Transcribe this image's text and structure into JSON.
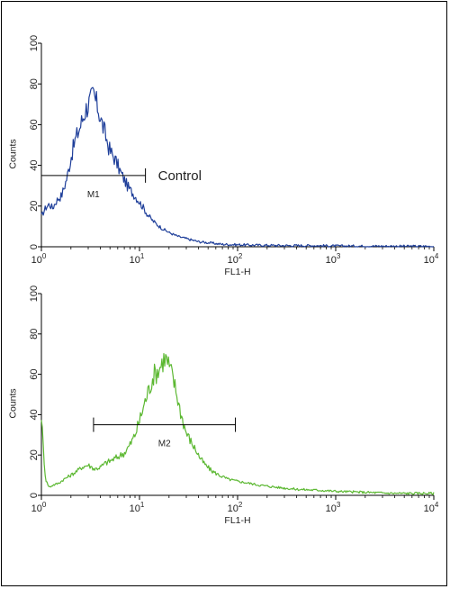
{
  "chart_data": [
    {
      "type": "line",
      "panel": "top",
      "xlabel": "FL1-H",
      "ylabel": "Counts",
      "x_scale": "log",
      "xlim": [
        1,
        10000
      ],
      "ylim": [
        0,
        100
      ],
      "y_ticks": [
        "0",
        "20",
        "40",
        "60",
        "80",
        "100"
      ],
      "x_ticks": [
        {
          "base": "10",
          "exp": "0"
        },
        {
          "base": "10",
          "exp": "1"
        },
        {
          "base": "10",
          "exp": "2"
        },
        {
          "base": "10",
          "exp": "3"
        },
        {
          "base": "10",
          "exp": "4"
        }
      ],
      "color": "#1f3f9a",
      "marker": {
        "label": "M1",
        "from": 1.0,
        "to": 11.5,
        "y": 35
      },
      "annotation": "Control",
      "series": [
        {
          "x": [
            1.0,
            1.1,
            1.2,
            1.3,
            1.4,
            1.5,
            1.6,
            1.7,
            1.8,
            1.9,
            2.0,
            2.2,
            2.4,
            2.6,
            2.8,
            3.0,
            3.2,
            3.4,
            3.6,
            3.8,
            4.0,
            4.3,
            4.6,
            5.0,
            5.5,
            6.0,
            6.5,
            7.0,
            7.5,
            8.0,
            9.0,
            10.0,
            11.0,
            12.0,
            13.5,
            15.0,
            17.0,
            20.0,
            25.0,
            30.0,
            40.0,
            50.0,
            70.0,
            100.0,
            150.0,
            300.0,
            600.0,
            1000.0,
            3000.0,
            10000.0
          ],
          "y": [
            15,
            19,
            21,
            19,
            22,
            24,
            25,
            29,
            33,
            38,
            44,
            52,
            57,
            62,
            67,
            70,
            72,
            75,
            71,
            68,
            63,
            58,
            53,
            47,
            44,
            40,
            36,
            33,
            30,
            28,
            25,
            22,
            19,
            16,
            13,
            11,
            9,
            7,
            5,
            4,
            2.5,
            2,
            1.2,
            1,
            0.8,
            0.6,
            0.6,
            0.4,
            0.3,
            0.2
          ]
        }
      ]
    },
    {
      "type": "line",
      "panel": "bottom",
      "xlabel": "FL1-H",
      "ylabel": "Counts",
      "x_scale": "log",
      "xlim": [
        1,
        10000
      ],
      "ylim": [
        0,
        100
      ],
      "y_ticks": [
        "0",
        "20",
        "40",
        "60",
        "80",
        "100"
      ],
      "x_ticks": [
        {
          "base": "10",
          "exp": "0"
        },
        {
          "base": "10",
          "exp": "1"
        },
        {
          "base": "10",
          "exp": "2"
        },
        {
          "base": "10",
          "exp": "3"
        },
        {
          "base": "10",
          "exp": "4"
        }
      ],
      "color": "#5cb832",
      "marker": {
        "label": "M2",
        "from": 3.4,
        "to": 95,
        "y": 35
      },
      "series": [
        {
          "x": [
            1.0,
            1.05,
            1.1,
            1.2,
            1.3,
            1.5,
            1.7,
            2.0,
            2.3,
            2.6,
            3.0,
            3.5,
            4.0,
            4.5,
            5.0,
            6.0,
            7.0,
            8.0,
            9.0,
            10.0,
            11.0,
            12.0,
            13.0,
            14.0,
            15.0,
            16.0,
            17.0,
            18.0,
            19.0,
            20.0,
            22.0,
            24.0,
            26.0,
            28.0,
            30.0,
            34.0,
            38.0,
            42.0,
            47.0,
            55.0,
            65.0,
            80.0,
            100.0,
            130.0,
            170.0,
            250.0,
            400.0,
            700.0,
            1000.0,
            2000.0,
            4000.0,
            10000.0
          ],
          "y": [
            40,
            22,
            8,
            4,
            5,
            6,
            8,
            10,
            12,
            14,
            15,
            13,
            14,
            16,
            17,
            19,
            21,
            25,
            30,
            37,
            44,
            50,
            55,
            60,
            61,
            63,
            66,
            68,
            67,
            64,
            58,
            50,
            42,
            36,
            31,
            26,
            22,
            18,
            15,
            12,
            10,
            8,
            7,
            6,
            5,
            4,
            3,
            2.5,
            2,
            1.5,
            1,
            1
          ]
        }
      ]
    }
  ]
}
